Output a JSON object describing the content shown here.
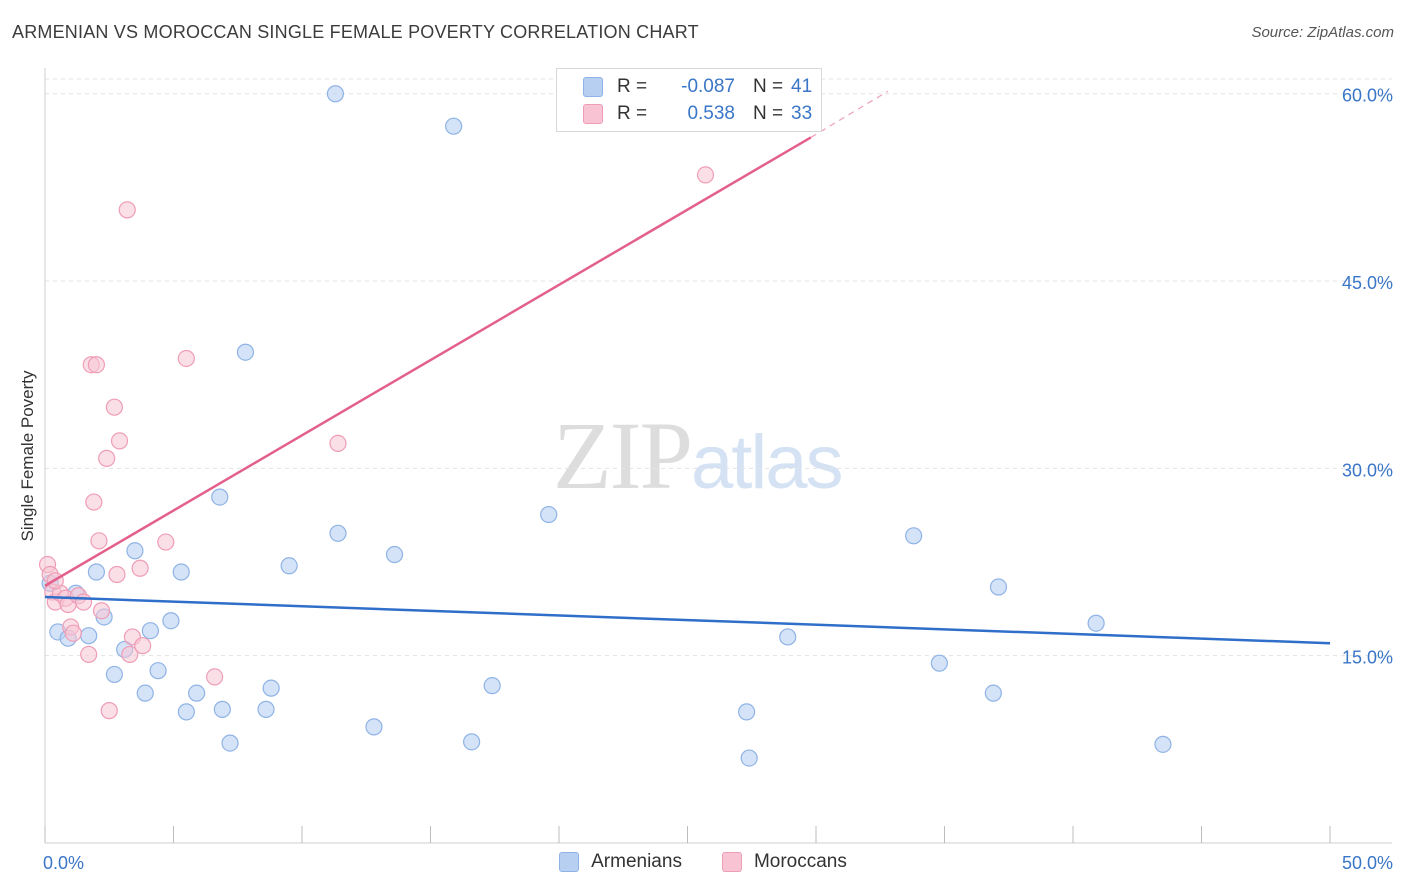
{
  "title": "ARMENIAN VS MOROCCAN SINGLE FEMALE POVERTY CORRELATION CHART",
  "source": "Source: ZipAtlas.com",
  "watermark": {
    "part_a": "ZIP",
    "part_b": "atlas"
  },
  "legend": {
    "rows": [
      {
        "r_label": "R =",
        "r_value": "-0.087",
        "n_label": "N =",
        "n_value": "41"
      },
      {
        "r_label": "R =",
        "r_value": "0.538",
        "n_label": "N =",
        "n_value": "33"
      }
    ]
  },
  "bottom_legend": {
    "series_a": "Armenians",
    "series_b": "Moroccans"
  },
  "colors": {
    "armenians_fill": "#b7d0f2",
    "armenians_stroke": "#8fb3e6",
    "armenians_line": "#2f6fc9",
    "moroccans_fill": "#f8c4d4",
    "moroccans_stroke": "#ef9db6",
    "moroccans_line": "#e3608b",
    "tick_text": "#3a76c7",
    "grid": "#e3e3e3"
  },
  "chart_data": {
    "type": "scatter",
    "title": "ARMENIAN VS MOROCCAN SINGLE FEMALE POVERTY CORRELATION CHART",
    "xlabel": "",
    "ylabel": "Single Female Poverty",
    "xlim": [
      0,
      50
    ],
    "ylim": [
      0,
      61.5
    ],
    "x_tick_labels": [
      "0.0%",
      "50.0%"
    ],
    "y_ticks": [
      15,
      30,
      45,
      60
    ],
    "y_tick_labels": [
      "15.0%",
      "30.0%",
      "45.0%",
      "60.0%"
    ],
    "series": [
      {
        "name": "Armenians",
        "r": -0.087,
        "n": 41,
        "trend": {
          "x": [
            0,
            50
          ],
          "y": [
            19.7,
            16.0
          ]
        },
        "points": [
          [
            0.2,
            20.8
          ],
          [
            0.5,
            16.9
          ],
          [
            0.9,
            16.4
          ],
          [
            1.2,
            20.0
          ],
          [
            1.7,
            16.6
          ],
          [
            2.0,
            21.7
          ],
          [
            2.3,
            18.1
          ],
          [
            2.7,
            13.5
          ],
          [
            3.1,
            15.5
          ],
          [
            3.5,
            23.4
          ],
          [
            3.9,
            12.0
          ],
          [
            4.1,
            17.0
          ],
          [
            4.4,
            13.8
          ],
          [
            4.9,
            17.8
          ],
          [
            5.3,
            21.7
          ],
          [
            5.5,
            10.5
          ],
          [
            5.9,
            12.0
          ],
          [
            6.8,
            27.7
          ],
          [
            6.9,
            10.7
          ],
          [
            7.2,
            8.0
          ],
          [
            7.8,
            39.3
          ],
          [
            8.6,
            10.7
          ],
          [
            8.8,
            12.4
          ],
          [
            9.5,
            22.2
          ],
          [
            11.4,
            24.8
          ],
          [
            11.3,
            60.0
          ],
          [
            12.8,
            9.3
          ],
          [
            13.6,
            23.1
          ],
          [
            15.9,
            57.4
          ],
          [
            16.6,
            8.1
          ],
          [
            17.4,
            12.6
          ],
          [
            19.6,
            26.3
          ],
          [
            27.3,
            10.5
          ],
          [
            27.4,
            6.8
          ],
          [
            28.9,
            16.5
          ],
          [
            33.8,
            24.6
          ],
          [
            34.8,
            14.4
          ],
          [
            36.9,
            12.0
          ],
          [
            37.1,
            20.5
          ],
          [
            40.9,
            17.6
          ],
          [
            43.5,
            7.9
          ]
        ]
      },
      {
        "name": "Moroccans",
        "r": 0.538,
        "n": 33,
        "trend": {
          "x": [
            0,
            29.8
          ],
          "y": [
            20.6,
            56.5
          ]
        },
        "trend_dashed": {
          "x": [
            29.8,
            32.8
          ],
          "y": [
            56.5,
            60.2
          ]
        },
        "points": [
          [
            0.1,
            22.3
          ],
          [
            0.2,
            21.5
          ],
          [
            0.3,
            20.1
          ],
          [
            0.4,
            19.3
          ],
          [
            0.6,
            20.0
          ],
          [
            0.8,
            19.6
          ],
          [
            0.9,
            19.1
          ],
          [
            1.0,
            17.3
          ],
          [
            1.1,
            16.8
          ],
          [
            1.3,
            19.8
          ],
          [
            1.5,
            19.3
          ],
          [
            1.7,
            15.1
          ],
          [
            1.8,
            38.3
          ],
          [
            1.9,
            27.3
          ],
          [
            2.0,
            38.3
          ],
          [
            2.1,
            24.2
          ],
          [
            2.2,
            18.6
          ],
          [
            2.4,
            30.8
          ],
          [
            2.5,
            10.6
          ],
          [
            2.7,
            34.9
          ],
          [
            2.8,
            21.5
          ],
          [
            2.9,
            32.2
          ],
          [
            3.2,
            50.7
          ],
          [
            3.3,
            15.1
          ],
          [
            3.4,
            16.5
          ],
          [
            3.7,
            22.0
          ],
          [
            3.8,
            15.8
          ],
          [
            4.7,
            24.1
          ],
          [
            5.5,
            38.8
          ],
          [
            6.6,
            13.3
          ],
          [
            11.4,
            32.0
          ],
          [
            25.7,
            53.5
          ],
          [
            0.4,
            21.0
          ]
        ]
      }
    ]
  }
}
